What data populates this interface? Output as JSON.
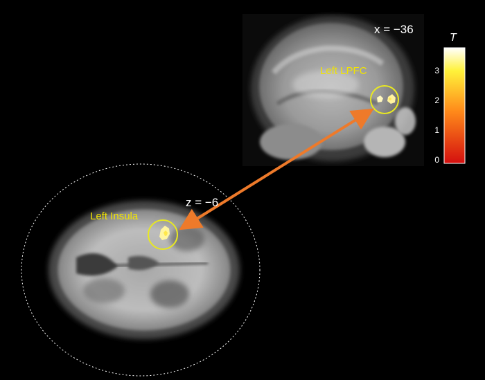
{
  "sagittal": {
    "coordinate_label": "x = −36",
    "roi_label": "Left LPFC"
  },
  "axial": {
    "coordinate_label": "z = −6",
    "roi_label": "Left Insula"
  },
  "colorbar": {
    "title": "T",
    "ticks": [
      "3",
      "2",
      "1",
      "0"
    ],
    "range": [
      0,
      3.7
    ],
    "colors": {
      "top": "#ffffff",
      "upper": "#fff23a",
      "mid": "#ff8a1a",
      "bottom": "#d40f0f"
    }
  },
  "colors": {
    "roi_circle": "#e8e822",
    "roi_label": "#f2e400",
    "connector_arrow": "#ee7a2a",
    "outline_ring": "#ffffff"
  }
}
